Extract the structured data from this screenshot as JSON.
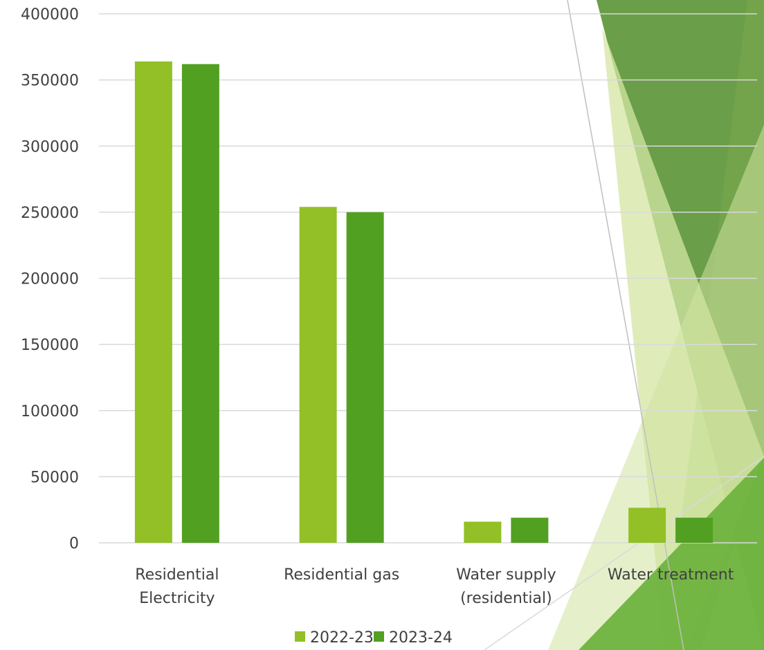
{
  "chart_data": {
    "type": "bar",
    "title": "",
    "xlabel": "",
    "ylabel": "",
    "categories": [
      [
        "Residential",
        "Electricity"
      ],
      [
        "Residential gas"
      ],
      [
        "Water supply",
        "(residential)"
      ],
      [
        "Water treatment"
      ]
    ],
    "series": [
      {
        "name": "2022-23",
        "color": "#92c026",
        "values": [
          364000,
          254000,
          16000,
          26500
        ]
      },
      {
        "name": "2023-24",
        "color": "#52a021",
        "values": [
          362000,
          250000,
          19000,
          19000
        ]
      }
    ],
    "ylim": [
      0,
      400000
    ],
    "yticks": [
      0,
      50000,
      100000,
      150000,
      200000,
      250000,
      300000,
      350000,
      400000
    ],
    "grid": true,
    "legend": "bottom-center"
  },
  "theme": {
    "gridline_color": "#d9d9d9",
    "axis_color": "#d9d9d9",
    "text_color": "#404040",
    "decor_dark": "#5a9334",
    "decor_mid": "#6fad3a",
    "decor_light": "#d4e6a3"
  }
}
